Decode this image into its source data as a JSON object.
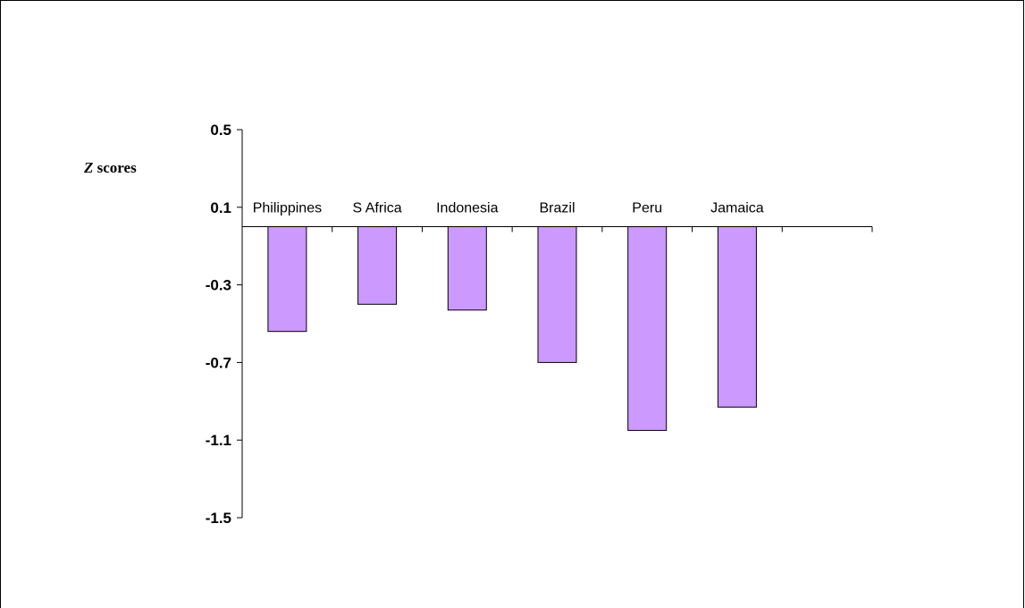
{
  "chart_data": {
    "type": "bar",
    "title": "",
    "xlabel": "",
    "ylabel_italic": "Z",
    "ylabel_rest": " scores",
    "categories": [
      "Philippines",
      "S Africa",
      "Indonesia",
      "Brazil",
      "Peru",
      "Jamaica"
    ],
    "values": [
      -0.54,
      -0.4,
      -0.43,
      -0.7,
      -1.05,
      -0.93
    ],
    "y_ticks": [
      0.5,
      0.1,
      -0.3,
      -0.7,
      -1.1,
      -1.5
    ],
    "y_tick_labels": [
      "0.5",
      "0.1",
      "-0.3",
      "-0.7",
      "-1.1",
      "-1.5"
    ],
    "ylim": [
      -1.5,
      0.5
    ],
    "x_axis_at": 0,
    "bar_color": "#cc99ff",
    "bar_edge_color": "#000000",
    "grid": false,
    "legend": "none"
  }
}
